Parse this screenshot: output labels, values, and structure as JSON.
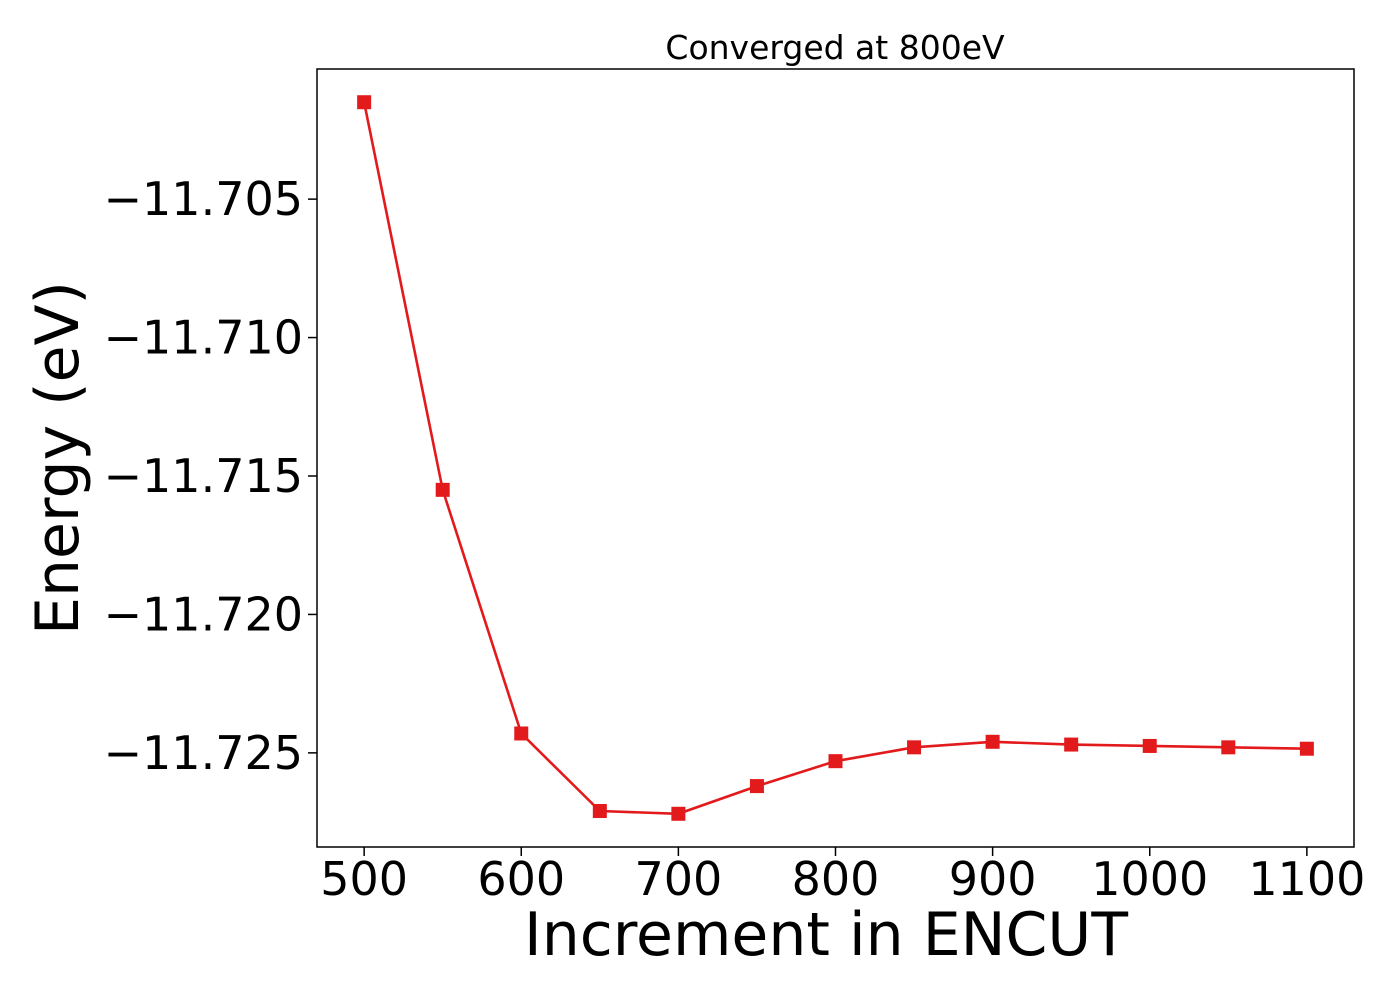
{
  "chart_data": {
    "type": "line",
    "title": "Converged at 800eV",
    "xlabel": "Increment in ENCUT",
    "ylabel": "Energy (eV)",
    "x": [
      500,
      550,
      600,
      650,
      700,
      750,
      800,
      850,
      900,
      950,
      1000,
      1050,
      1100
    ],
    "series": [
      {
        "values": [
          -11.7015,
          -11.7155,
          -11.7243,
          -11.7271,
          -11.7272,
          -11.7262,
          -11.7253,
          -11.7248,
          -11.7246,
          -11.7247,
          -11.72475,
          -11.7248,
          -11.72485
        ],
        "color": "#e31a1c",
        "marker": "square"
      }
    ],
    "xlim": [
      470,
      1130
    ],
    "ylim": [
      -11.7284,
      -11.7003
    ],
    "xticks": [
      500,
      600,
      700,
      800,
      900,
      1000,
      1100
    ],
    "xtick_labels": [
      "500",
      "600",
      "700",
      "800",
      "900",
      "1000",
      "1100"
    ],
    "yticks": [
      -11.705,
      -11.71,
      -11.715,
      -11.72,
      -11.725
    ],
    "ytick_labels": [
      "−11.705",
      "−11.710",
      "−11.715",
      "−11.720",
      "−11.725"
    ],
    "grid": false,
    "legend": "none"
  }
}
